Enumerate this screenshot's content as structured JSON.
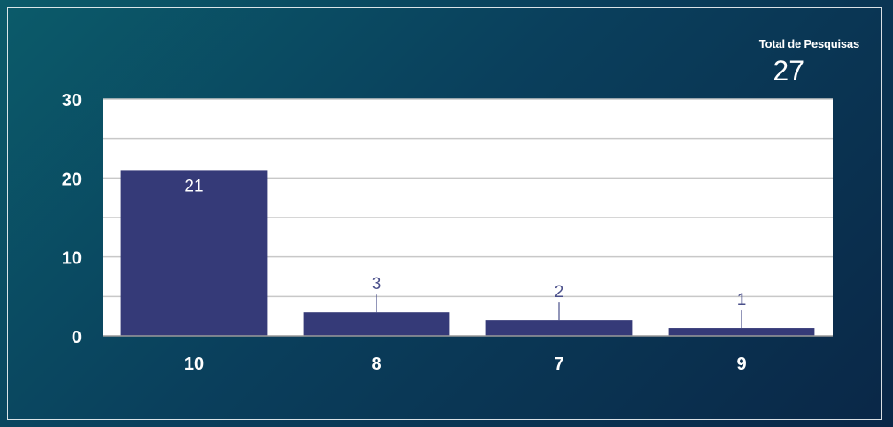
{
  "kpi": {
    "label": "Total de Pesquisas",
    "value": "27"
  },
  "chart_data": {
    "type": "bar",
    "categories": [
      "10",
      "8",
      "7",
      "9"
    ],
    "values": [
      21,
      3,
      2,
      1
    ],
    "ylim": [
      0,
      30
    ],
    "yticks": [
      0,
      10,
      20,
      30
    ],
    "minor_grid_step": 5,
    "grid": true,
    "colors": {
      "bar": "#353a78",
      "label_inside": "#ffffff",
      "label_outside": "#4a4f8a",
      "plot_bg": "#ffffff",
      "tick_text": "#ffffff",
      "grid": "#c8c8c8"
    }
  }
}
